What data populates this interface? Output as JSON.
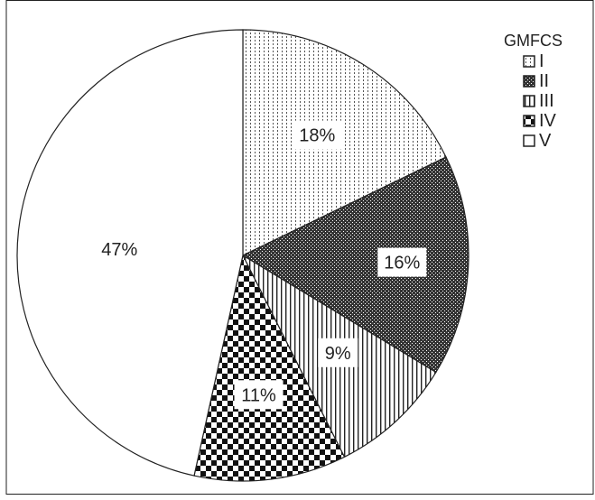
{
  "chart_data": {
    "type": "pie",
    "legend_title": "GMFCS",
    "legend_position": "top-right",
    "series_patterns": [
      "dotted-vertical",
      "dense-crosshatch",
      "vertical-stripes",
      "checkerboard",
      "solid-white"
    ],
    "slices": [
      {
        "label": "I",
        "value": 18,
        "value_label": "18%"
      },
      {
        "label": "II",
        "value": 16,
        "value_label": "16%"
      },
      {
        "label": "III",
        "value": 9,
        "value_label": "9%"
      },
      {
        "label": "IV",
        "value": 11,
        "value_label": "11%"
      },
      {
        "label": "V",
        "value": 47,
        "value_label": "47%"
      }
    ]
  },
  "colors": {
    "outline": "#222222",
    "background": "#ffffff"
  }
}
